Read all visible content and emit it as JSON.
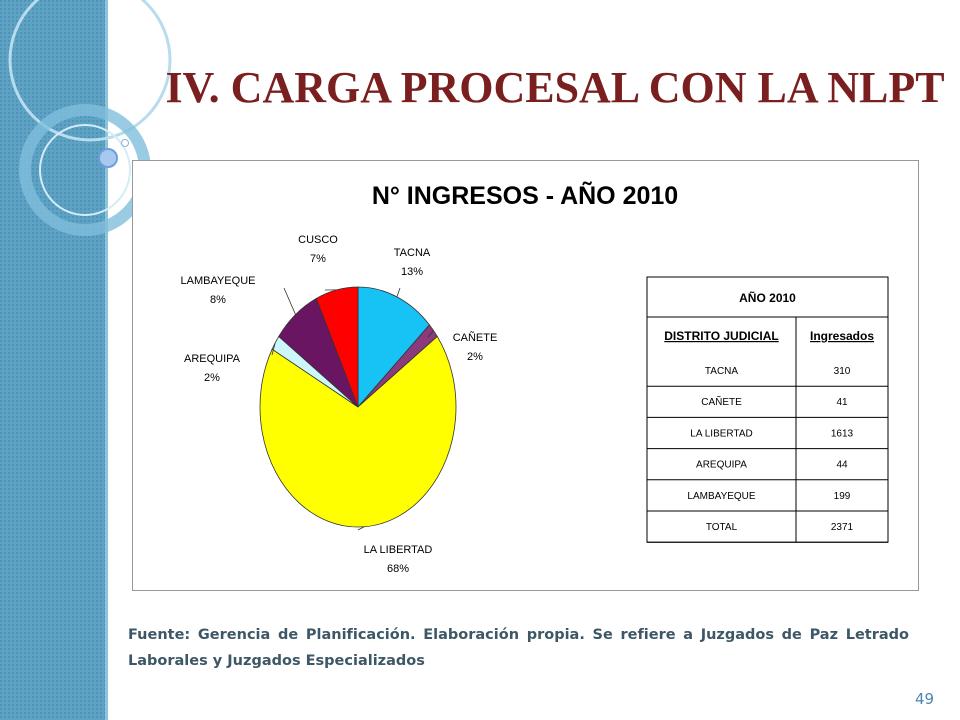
{
  "slide": {
    "title": "IV. CARGA PROCESAL CON LA NLPT",
    "source": "Fuente: Gerencia de Planificación. Elaboración propia. Se refiere a Juzgados de Paz Letrado Laborales y Juzgados Especializados",
    "page_number": "49"
  },
  "chart_data": {
    "type": "pie",
    "title": "N° INGRESOS - AÑO 2010",
    "categories": [
      "TACNA",
      "CAÑETE",
      "LA LIBERTAD",
      "AREQUIPA",
      "LAMBAYEQUE",
      "CUSCO"
    ],
    "values": [
      13,
      2,
      68,
      2,
      8,
      7
    ],
    "value_labels": [
      "13%",
      "2%",
      "68%",
      "2%",
      "8%",
      "7%"
    ],
    "colors": [
      "#17c2f5",
      "#8b3a7c",
      "#ffff00",
      "#ccf7fb",
      "#6a1561",
      "#ff0000"
    ]
  },
  "table": {
    "title": "AÑO 2010",
    "headers": [
      "DISTRITO JUDICIAL",
      "Ingresados"
    ],
    "rows": [
      [
        "TACNA",
        310
      ],
      [
        "CAÑETE",
        41
      ],
      [
        "LA LIBERTAD",
        1613
      ],
      [
        "AREQUIPA",
        44
      ],
      [
        "LAMBAYEQUE",
        199
      ],
      [
        "TOTAL",
        2371
      ]
    ]
  }
}
